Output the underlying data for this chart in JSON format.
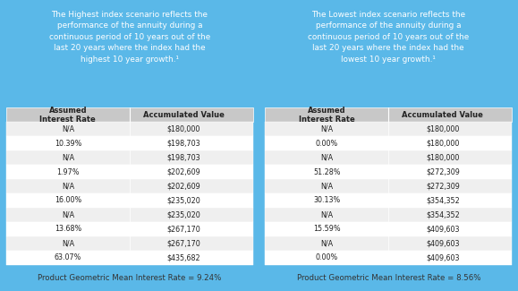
{
  "bg_color": "#5ab8e8",
  "table_header_color": "#c8c8c8",
  "table_row_light": "#efefef",
  "table_row_dark": "#ffffff",
  "footer_bg": "#f0f0f0",
  "footer_text_color": "#333333",
  "text_color_dark": "#222222",
  "text_color_white": "#ffffff",
  "left_panel": {
    "intro_keyword": "Highest",
    "intro_suffix_high": "highest",
    "col1_header": "Assumed\nInterest Rate",
    "col2_header": "Accumulated Value",
    "rows": [
      [
        "N/A",
        "$180,000"
      ],
      [
        "10.39%",
        "$198,703"
      ],
      [
        "N/A",
        "$198,703"
      ],
      [
        "1.97%",
        "$202,609"
      ],
      [
        "N/A",
        "$202,609"
      ],
      [
        "16.00%",
        "$235,020"
      ],
      [
        "N/A",
        "$235,020"
      ],
      [
        "13.68%",
        "$267,170"
      ],
      [
        "N/A",
        "$267,170"
      ],
      [
        "63.07%",
        "$435,682"
      ]
    ],
    "footer": "Product Geometric Mean Interest Rate = 9.24%"
  },
  "right_panel": {
    "intro_keyword": "Lowest",
    "intro_suffix_high": "lowest",
    "col1_header": "Assumed\nInterest Rate",
    "col2_header": "Accumulated Value",
    "rows": [
      [
        "N/A",
        "$180,000"
      ],
      [
        "0.00%",
        "$180,000"
      ],
      [
        "N/A",
        "$180,000"
      ],
      [
        "51.28%",
        "$272,309"
      ],
      [
        "N/A",
        "$272,309"
      ],
      [
        "30.13%",
        "$354,352"
      ],
      [
        "N/A",
        "$354,352"
      ],
      [
        "15.59%",
        "$409,603"
      ],
      [
        "N/A",
        "$409,603"
      ],
      [
        "0.00%",
        "$409,603"
      ]
    ],
    "footer": "Product Geometric Mean Interest Rate = 8.56%"
  }
}
